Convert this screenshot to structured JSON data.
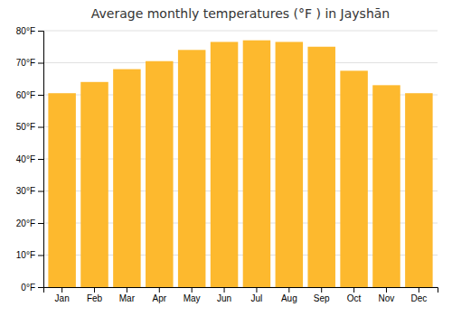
{
  "chart_data": {
    "type": "bar",
    "title": "Average monthly temperatures (°F ) in Jayshān",
    "categories": [
      "Jan",
      "Feb",
      "Mar",
      "Apr",
      "May",
      "Jun",
      "Jul",
      "Aug",
      "Sep",
      "Oct",
      "Nov",
      "Dec"
    ],
    "values": [
      60.5,
      64,
      68,
      70.5,
      74,
      76.5,
      77,
      76.5,
      75,
      67.5,
      63,
      60.5
    ],
    "color": "#FDB92E",
    "ylim": [
      0,
      80
    ],
    "yticks": [
      {
        "value": 0,
        "label": "0°F"
      },
      {
        "value": 10,
        "label": "10°F"
      },
      {
        "value": 20,
        "label": "20°F"
      },
      {
        "value": 30,
        "label": "30°F"
      },
      {
        "value": 40,
        "label": "40°F"
      },
      {
        "value": 50,
        "label": "50°F"
      },
      {
        "value": 60,
        "label": "60°F"
      },
      {
        "value": 70,
        "label": "70°F"
      },
      {
        "value": 80,
        "label": "80°F"
      }
    ],
    "grid": true
  }
}
